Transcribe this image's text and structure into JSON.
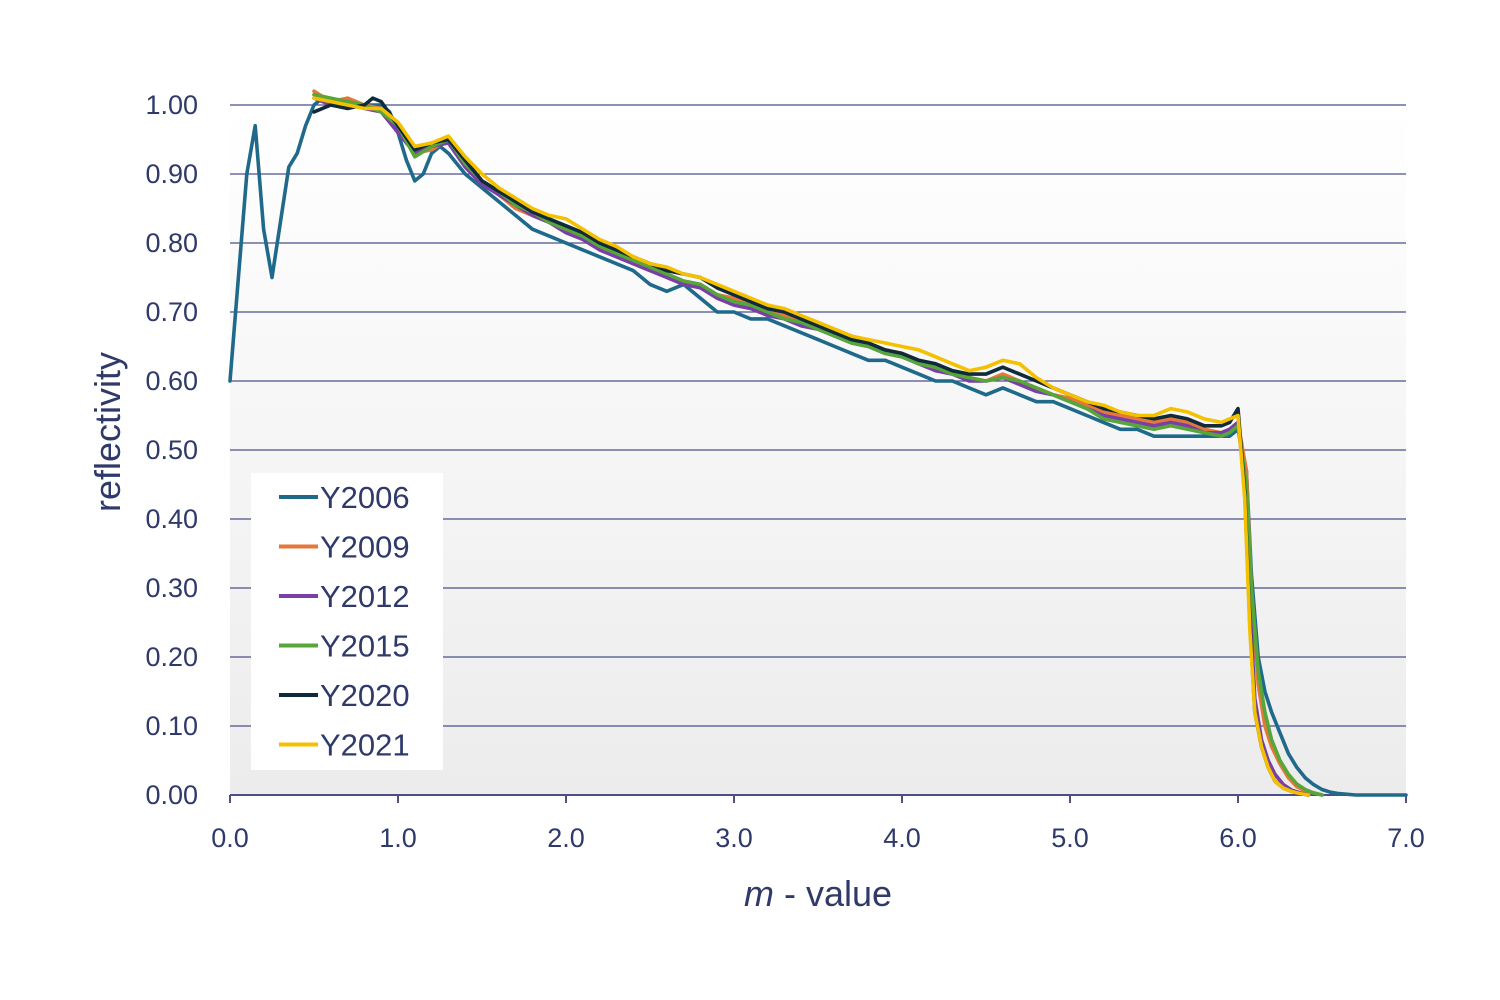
{
  "chart_data": {
    "type": "line",
    "title": "",
    "xlabel_italic": "m",
    "xlabel_rest": " - value",
    "ylabel": "reflectivity",
    "xlim": [
      0.0,
      7.0
    ],
    "ylim": [
      0.0,
      1.0
    ],
    "xticks": [
      "0.0",
      "1.0",
      "2.0",
      "3.0",
      "4.0",
      "5.0",
      "6.0",
      "7.0"
    ],
    "yticks": [
      "0.00",
      "0.10",
      "0.20",
      "0.30",
      "0.40",
      "0.50",
      "0.60",
      "0.70",
      "0.80",
      "0.90",
      "1.00"
    ],
    "grid": "horizontal",
    "legend_position": "bottom-left",
    "series": [
      {
        "name": "Y2006",
        "color": "#1f6a8a",
        "x": [
          0.0,
          0.05,
          0.1,
          0.15,
          0.2,
          0.25,
          0.3,
          0.35,
          0.4,
          0.45,
          0.5,
          0.55,
          0.6,
          0.7,
          0.8,
          0.9,
          0.95,
          1.0,
          1.05,
          1.1,
          1.15,
          1.2,
          1.25,
          1.3,
          1.4,
          1.5,
          1.6,
          1.7,
          1.8,
          1.9,
          2.0,
          2.1,
          2.2,
          2.3,
          2.4,
          2.5,
          2.6,
          2.7,
          2.8,
          2.9,
          3.0,
          3.1,
          3.2,
          3.3,
          3.4,
          3.5,
          3.6,
          3.7,
          3.8,
          3.9,
          4.0,
          4.1,
          4.2,
          4.3,
          4.4,
          4.5,
          4.6,
          4.7,
          4.8,
          4.9,
          5.0,
          5.1,
          5.2,
          5.3,
          5.4,
          5.5,
          5.6,
          5.7,
          5.8,
          5.9,
          5.95,
          6.0,
          6.05,
          6.08,
          6.12,
          6.16,
          6.2,
          6.25,
          6.3,
          6.35,
          6.4,
          6.45,
          6.5,
          6.55,
          6.6,
          6.7,
          7.0
        ],
        "y": [
          0.6,
          0.75,
          0.9,
          0.97,
          0.82,
          0.75,
          0.83,
          0.91,
          0.93,
          0.97,
          1.0,
          1.01,
          1.0,
          1.005,
          1.0,
          1.0,
          0.99,
          0.96,
          0.92,
          0.89,
          0.9,
          0.93,
          0.94,
          0.93,
          0.9,
          0.88,
          0.86,
          0.84,
          0.82,
          0.81,
          0.8,
          0.79,
          0.78,
          0.77,
          0.76,
          0.74,
          0.73,
          0.74,
          0.72,
          0.7,
          0.7,
          0.69,
          0.69,
          0.68,
          0.67,
          0.66,
          0.65,
          0.64,
          0.63,
          0.63,
          0.62,
          0.61,
          0.6,
          0.6,
          0.59,
          0.58,
          0.59,
          0.58,
          0.57,
          0.57,
          0.56,
          0.55,
          0.54,
          0.53,
          0.53,
          0.52,
          0.52,
          0.52,
          0.52,
          0.52,
          0.52,
          0.53,
          0.47,
          0.32,
          0.2,
          0.15,
          0.12,
          0.09,
          0.06,
          0.04,
          0.025,
          0.015,
          0.008,
          0.004,
          0.002,
          0.0,
          0.0
        ]
      },
      {
        "name": "Y2009",
        "color": "#e6773a",
        "x": [
          0.5,
          0.6,
          0.7,
          0.8,
          0.9,
          1.0,
          1.1,
          1.2,
          1.3,
          1.4,
          1.5,
          1.6,
          1.7,
          1.8,
          1.9,
          2.0,
          2.1,
          2.2,
          2.3,
          2.4,
          2.5,
          2.6,
          2.7,
          2.8,
          2.9,
          3.0,
          3.1,
          3.2,
          3.3,
          3.4,
          3.5,
          3.6,
          3.7,
          3.8,
          3.9,
          4.0,
          4.1,
          4.2,
          4.3,
          4.4,
          4.5,
          4.6,
          4.7,
          4.8,
          4.9,
          5.0,
          5.1,
          5.2,
          5.3,
          5.4,
          5.5,
          5.6,
          5.7,
          5.8,
          5.9,
          5.95,
          6.0,
          6.05,
          6.08,
          6.12,
          6.16,
          6.2,
          6.25,
          6.3,
          6.35,
          6.4,
          6.45,
          6.5
        ],
        "y": [
          1.02,
          1.005,
          1.01,
          1.0,
          0.995,
          0.97,
          0.93,
          0.935,
          0.95,
          0.92,
          0.89,
          0.87,
          0.85,
          0.84,
          0.83,
          0.82,
          0.81,
          0.8,
          0.785,
          0.77,
          0.76,
          0.755,
          0.745,
          0.74,
          0.725,
          0.72,
          0.71,
          0.7,
          0.695,
          0.69,
          0.68,
          0.67,
          0.66,
          0.655,
          0.645,
          0.64,
          0.63,
          0.62,
          0.61,
          0.605,
          0.6,
          0.61,
          0.6,
          0.59,
          0.58,
          0.575,
          0.565,
          0.555,
          0.55,
          0.545,
          0.54,
          0.545,
          0.54,
          0.53,
          0.525,
          0.53,
          0.54,
          0.47,
          0.3,
          0.16,
          0.1,
          0.07,
          0.045,
          0.025,
          0.012,
          0.006,
          0.003,
          0.0
        ]
      },
      {
        "name": "Y2012",
        "color": "#7a3fa6",
        "x": [
          0.5,
          0.6,
          0.7,
          0.8,
          0.9,
          1.0,
          1.1,
          1.2,
          1.3,
          1.4,
          1.5,
          1.6,
          1.7,
          1.8,
          1.9,
          2.0,
          2.1,
          2.2,
          2.3,
          2.4,
          2.5,
          2.6,
          2.7,
          2.8,
          2.9,
          3.0,
          3.1,
          3.2,
          3.3,
          3.4,
          3.5,
          3.6,
          3.7,
          3.8,
          3.9,
          4.0,
          4.1,
          4.2,
          4.3,
          4.4,
          4.5,
          4.6,
          4.7,
          4.8,
          4.9,
          5.0,
          5.1,
          5.2,
          5.3,
          5.4,
          5.5,
          5.6,
          5.7,
          5.8,
          5.9,
          5.95,
          6.0,
          6.04,
          6.07,
          6.1,
          6.14,
          6.18,
          6.22,
          6.27,
          6.32,
          6.37,
          6.42
        ],
        "y": [
          1.01,
          1.0,
          1.005,
          0.995,
          0.99,
          0.96,
          0.93,
          0.94,
          0.945,
          0.91,
          0.885,
          0.87,
          0.855,
          0.84,
          0.83,
          0.815,
          0.805,
          0.79,
          0.78,
          0.77,
          0.76,
          0.75,
          0.74,
          0.735,
          0.72,
          0.71,
          0.705,
          0.695,
          0.69,
          0.68,
          0.675,
          0.665,
          0.655,
          0.65,
          0.64,
          0.635,
          0.625,
          0.615,
          0.61,
          0.6,
          0.6,
          0.605,
          0.595,
          0.585,
          0.58,
          0.57,
          0.56,
          0.55,
          0.545,
          0.54,
          0.535,
          0.54,
          0.535,
          0.525,
          0.525,
          0.53,
          0.54,
          0.45,
          0.28,
          0.14,
          0.08,
          0.05,
          0.03,
          0.015,
          0.007,
          0.003,
          0.0
        ]
      },
      {
        "name": "Y2015",
        "color": "#57a639",
        "x": [
          0.5,
          0.6,
          0.7,
          0.8,
          0.9,
          1.0,
          1.1,
          1.2,
          1.3,
          1.4,
          1.5,
          1.6,
          1.7,
          1.8,
          1.9,
          2.0,
          2.1,
          2.2,
          2.3,
          2.4,
          2.5,
          2.6,
          2.7,
          2.8,
          2.9,
          3.0,
          3.1,
          3.2,
          3.3,
          3.4,
          3.5,
          3.6,
          3.7,
          3.8,
          3.9,
          4.0,
          4.1,
          4.2,
          4.3,
          4.4,
          4.5,
          4.6,
          4.7,
          4.8,
          4.9,
          5.0,
          5.1,
          5.2,
          5.3,
          5.4,
          5.5,
          5.6,
          5.7,
          5.8,
          5.9,
          5.95,
          6.0,
          6.05,
          6.08,
          6.12,
          6.16,
          6.2,
          6.25,
          6.3,
          6.35,
          6.4,
          6.45,
          6.5
        ],
        "y": [
          1.015,
          1.01,
          1.005,
          1.0,
          0.99,
          0.97,
          0.925,
          0.94,
          0.95,
          0.915,
          0.89,
          0.875,
          0.855,
          0.845,
          0.83,
          0.82,
          0.81,
          0.795,
          0.785,
          0.775,
          0.765,
          0.755,
          0.745,
          0.74,
          0.725,
          0.715,
          0.71,
          0.7,
          0.69,
          0.685,
          0.675,
          0.665,
          0.655,
          0.65,
          0.64,
          0.635,
          0.625,
          0.62,
          0.61,
          0.605,
          0.6,
          0.605,
          0.6,
          0.59,
          0.58,
          0.57,
          0.56,
          0.545,
          0.54,
          0.535,
          0.53,
          0.535,
          0.53,
          0.525,
          0.52,
          0.525,
          0.535,
          0.45,
          0.3,
          0.18,
          0.12,
          0.08,
          0.05,
          0.03,
          0.016,
          0.008,
          0.003,
          0.0
        ]
      },
      {
        "name": "Y2020",
        "color": "#0f2a3a",
        "x": [
          0.5,
          0.6,
          0.7,
          0.8,
          0.85,
          0.9,
          1.0,
          1.1,
          1.2,
          1.3,
          1.4,
          1.5,
          1.6,
          1.7,
          1.8,
          1.9,
          2.0,
          2.1,
          2.2,
          2.3,
          2.4,
          2.5,
          2.6,
          2.7,
          2.8,
          2.9,
          3.0,
          3.1,
          3.2,
          3.3,
          3.4,
          3.5,
          3.6,
          3.7,
          3.8,
          3.9,
          4.0,
          4.1,
          4.2,
          4.3,
          4.4,
          4.5,
          4.6,
          4.7,
          4.8,
          4.9,
          5.0,
          5.1,
          5.2,
          5.3,
          5.4,
          5.5,
          5.6,
          5.7,
          5.8,
          5.9,
          5.95,
          6.0,
          6.04,
          6.07,
          6.1,
          6.14,
          6.18,
          6.22,
          6.27,
          6.32,
          6.37,
          6.42
        ],
        "y": [
          0.99,
          1.0,
          0.995,
          1.0,
          1.01,
          1.005,
          0.97,
          0.935,
          0.945,
          0.95,
          0.92,
          0.89,
          0.875,
          0.86,
          0.845,
          0.835,
          0.825,
          0.815,
          0.8,
          0.79,
          0.78,
          0.77,
          0.76,
          0.755,
          0.75,
          0.735,
          0.725,
          0.715,
          0.705,
          0.7,
          0.69,
          0.68,
          0.67,
          0.66,
          0.655,
          0.645,
          0.64,
          0.63,
          0.625,
          0.615,
          0.61,
          0.61,
          0.62,
          0.61,
          0.6,
          0.59,
          0.58,
          0.57,
          0.56,
          0.555,
          0.55,
          0.545,
          0.55,
          0.545,
          0.535,
          0.535,
          0.54,
          0.56,
          0.44,
          0.25,
          0.12,
          0.07,
          0.04,
          0.02,
          0.01,
          0.005,
          0.002,
          0.0
        ]
      },
      {
        "name": "Y2021",
        "color": "#f5c000",
        "x": [
          0.5,
          0.6,
          0.7,
          0.8,
          0.9,
          1.0,
          1.1,
          1.2,
          1.3,
          1.4,
          1.5,
          1.6,
          1.7,
          1.8,
          1.9,
          2.0,
          2.1,
          2.2,
          2.3,
          2.4,
          2.5,
          2.6,
          2.7,
          2.8,
          2.9,
          3.0,
          3.1,
          3.2,
          3.3,
          3.4,
          3.5,
          3.6,
          3.7,
          3.8,
          3.9,
          4.0,
          4.1,
          4.2,
          4.3,
          4.4,
          4.5,
          4.6,
          4.7,
          4.8,
          4.9,
          5.0,
          5.1,
          5.2,
          5.3,
          5.4,
          5.5,
          5.6,
          5.7,
          5.8,
          5.9,
          5.95,
          6.0,
          6.04,
          6.07,
          6.1,
          6.14,
          6.18,
          6.22,
          6.27,
          6.32,
          6.37,
          6.42
        ],
        "y": [
          1.01,
          1.005,
          1.0,
          0.995,
          0.995,
          0.975,
          0.94,
          0.945,
          0.955,
          0.925,
          0.9,
          0.88,
          0.865,
          0.85,
          0.84,
          0.835,
          0.82,
          0.805,
          0.795,
          0.78,
          0.77,
          0.765,
          0.755,
          0.75,
          0.74,
          0.73,
          0.72,
          0.71,
          0.705,
          0.695,
          0.685,
          0.675,
          0.665,
          0.66,
          0.655,
          0.65,
          0.645,
          0.635,
          0.625,
          0.615,
          0.62,
          0.63,
          0.625,
          0.605,
          0.59,
          0.58,
          0.57,
          0.565,
          0.555,
          0.55,
          0.55,
          0.56,
          0.555,
          0.545,
          0.54,
          0.545,
          0.55,
          0.43,
          0.24,
          0.12,
          0.07,
          0.04,
          0.02,
          0.01,
          0.005,
          0.002,
          0.0
        ]
      }
    ]
  }
}
